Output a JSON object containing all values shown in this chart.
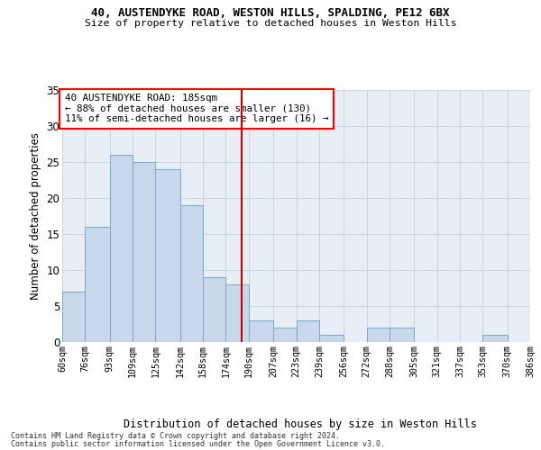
{
  "title1": "40, AUSTENDYKE ROAD, WESTON HILLS, SPALDING, PE12 6BX",
  "title2": "Size of property relative to detached houses in Weston Hills",
  "xlabel": "Distribution of detached houses by size in Weston Hills",
  "ylabel": "Number of detached properties",
  "footnote1": "Contains HM Land Registry data © Crown copyright and database right 2024.",
  "footnote2": "Contains public sector information licensed under the Open Government Licence v3.0.",
  "annotation_title": "40 AUSTENDYKE ROAD: 185sqm",
  "annotation_line1": "← 88% of detached houses are smaller (130)",
  "annotation_line2": "11% of semi-detached houses are larger (16) →",
  "bin_edges": [
    60,
    76,
    93,
    109,
    125,
    142,
    158,
    174,
    190,
    207,
    223,
    239,
    256,
    272,
    288,
    305,
    321,
    337,
    353,
    370,
    386
  ],
  "bin_labels": [
    "60sqm",
    "76sqm",
    "93sqm",
    "109sqm",
    "125sqm",
    "142sqm",
    "158sqm",
    "174sqm",
    "190sqm",
    "207sqm",
    "223sqm",
    "239sqm",
    "256sqm",
    "272sqm",
    "288sqm",
    "305sqm",
    "321sqm",
    "337sqm",
    "353sqm",
    "370sqm",
    "386sqm"
  ],
  "counts": [
    7,
    16,
    26,
    25,
    24,
    19,
    9,
    8,
    3,
    2,
    3,
    1,
    0,
    2,
    2,
    0,
    0,
    0,
    1,
    0
  ],
  "bar_facecolor": "#c8d8ea",
  "bar_edgecolor": "#7aaac8",
  "vline_x": 185,
  "vline_color": "#cc0000",
  "grid_color": "#c8d4e0",
  "bg_color": "#e8eef6",
  "ylim_max": 35,
  "yticks": [
    0,
    5,
    10,
    15,
    20,
    25,
    30,
    35
  ]
}
